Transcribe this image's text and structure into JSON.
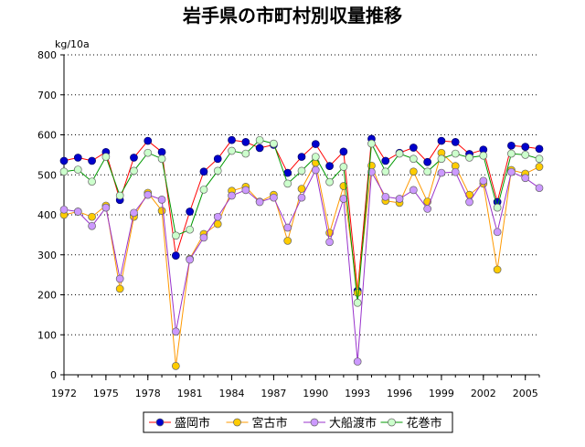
{
  "chart_data": {
    "type": "line",
    "title": "岩手県の市町村別収量推移",
    "ylabel": "kg/10a",
    "xlabel": "",
    "ylim": [
      0,
      800
    ],
    "yticks": [
      0,
      100,
      200,
      300,
      400,
      500,
      600,
      700,
      800
    ],
    "xticks": [
      1972,
      1975,
      1978,
      1981,
      1984,
      1987,
      1990,
      1993,
      1996,
      1999,
      2002,
      2005
    ],
    "x": [
      1972,
      1973,
      1974,
      1975,
      1976,
      1977,
      1978,
      1979,
      1980,
      1981,
      1982,
      1983,
      1984,
      1985,
      1986,
      1987,
      1988,
      1989,
      1990,
      1991,
      1992,
      1993,
      1994,
      1995,
      1996,
      1997,
      1998,
      1999,
      2000,
      2001,
      2002,
      2003,
      2004,
      2005,
      2006
    ],
    "grid": true,
    "legend_position": "bottom",
    "series": [
      {
        "name": "盛岡市",
        "line_color": "#ff0000",
        "marker_color": "#0000cc",
        "values": [
          535,
          543,
          535,
          557,
          437,
          543,
          585,
          557,
          298,
          408,
          508,
          540,
          587,
          582,
          567,
          575,
          505,
          545,
          577,
          522,
          558,
          210,
          590,
          535,
          555,
          568,
          532,
          585,
          582,
          552,
          563,
          432,
          573,
          570,
          565
        ]
      },
      {
        "name": "宮古市",
        "line_color": "#ff9900",
        "marker_color": "#ffcc00",
        "values": [
          400,
          408,
          395,
          423,
          215,
          395,
          455,
          410,
          22,
          290,
          352,
          377,
          460,
          470,
          433,
          450,
          335,
          465,
          530,
          355,
          472,
          205,
          523,
          435,
          430,
          508,
          433,
          555,
          522,
          450,
          478,
          263,
          512,
          503,
          520
        ]
      },
      {
        "name": "大船渡市",
        "line_color": "#9933cc",
        "marker_color": "#cc99ff",
        "values": [
          413,
          408,
          372,
          418,
          240,
          405,
          450,
          438,
          108,
          288,
          343,
          395,
          448,
          462,
          432,
          443,
          368,
          443,
          512,
          332,
          440,
          33,
          507,
          445,
          440,
          462,
          415,
          505,
          507,
          432,
          485,
          357,
          507,
          492,
          467
        ]
      },
      {
        "name": "花巻市",
        "line_color": "#009900",
        "marker_color": "#ccffcc",
        "values": [
          508,
          513,
          483,
          545,
          448,
          510,
          555,
          540,
          348,
          363,
          463,
          510,
          560,
          553,
          587,
          578,
          478,
          510,
          545,
          482,
          520,
          180,
          578,
          508,
          553,
          540,
          508,
          540,
          553,
          543,
          548,
          418,
          553,
          550,
          540
        ]
      }
    ]
  }
}
